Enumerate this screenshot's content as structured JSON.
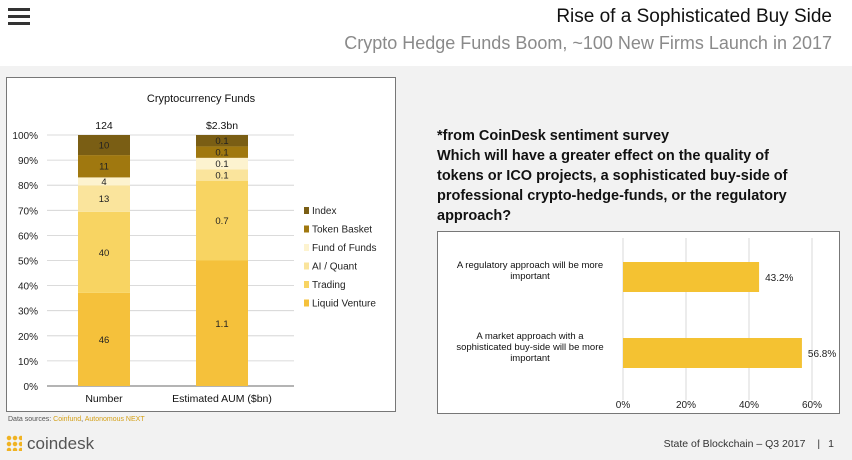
{
  "header": {
    "title": "Rise of a Sophisticated Buy Side",
    "subtitle": "Crypto Hedge Funds Boom, ~100 New Firms Launch in 2017"
  },
  "survey": {
    "lines": [
      "*from CoinDesk sentiment survey",
      "Which will have a greater effect on the quality of",
      "tokens or ICO projects, a sophisticated buy-side of",
      "professional crypto-hedge-funds, or the regulatory",
      "approach?"
    ]
  },
  "chart_data": [
    {
      "type": "bar",
      "stacked": true,
      "orientation": "vertical",
      "title": "Cryptocurrency Funds",
      "categories": [
        "Number",
        "Estimated AUM ($bn)"
      ],
      "totals": [
        "124",
        "$2.3bn"
      ],
      "ylim": [
        0,
        100
      ],
      "yticks": [
        "0%",
        "10%",
        "20%",
        "30%",
        "40%",
        "50%",
        "60%",
        "70%",
        "80%",
        "90%",
        "100%"
      ],
      "legend_position": "right",
      "series": [
        {
          "name": "Liquid Venture",
          "color": "#f5c13b",
          "percents": [
            37.1,
            50.0
          ],
          "labels": [
            "46",
            "1.1"
          ]
        },
        {
          "name": "Trading",
          "color": "#f8d462",
          "percents": [
            32.3,
            31.8
          ],
          "labels": [
            "40",
            "0.7"
          ]
        },
        {
          "name": "AI / Quant",
          "color": "#fae49c",
          "percents": [
            10.5,
            4.55
          ],
          "labels": [
            "13",
            "0.1"
          ]
        },
        {
          "name": "Fund of Funds",
          "color": "#fdf3cf",
          "percents": [
            3.2,
            4.55
          ],
          "labels": [
            "4",
            "0.1"
          ]
        },
        {
          "name": "Token Basket",
          "color": "#a0780f",
          "percents": [
            8.9,
            4.55
          ],
          "labels": [
            "11",
            "0.1"
          ]
        },
        {
          "name": "Index",
          "color": "#7a5e14",
          "percents": [
            8.0,
            4.55
          ],
          "labels": [
            "10",
            "0.1"
          ]
        }
      ]
    },
    {
      "type": "bar",
      "orientation": "horizontal",
      "categories": [
        "A regulatory approach will be more important",
        "A market approach with a sophisticated buy-side will be more important"
      ],
      "values": [
        43.2,
        56.8
      ],
      "labels": [
        "43.2%",
        "56.8%"
      ],
      "xlim": [
        0,
        60
      ],
      "xticks": [
        "0%",
        "20%",
        "40%",
        "60%"
      ],
      "color": "#f4c232"
    }
  ],
  "footer": {
    "sources_label": "Data sources:",
    "sources": [
      "Coinfund",
      "Autonomous NEXT"
    ],
    "logo": "coindesk",
    "report": "State of Blockchain – Q3 2017",
    "page": "1"
  }
}
